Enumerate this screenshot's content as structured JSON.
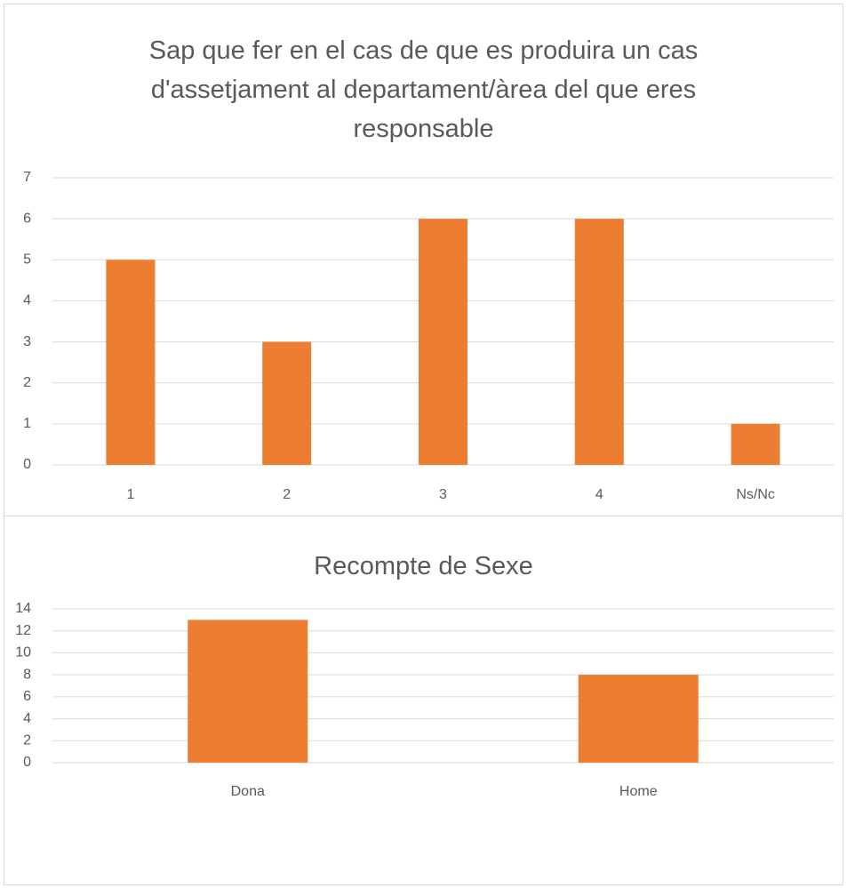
{
  "chart_data": [
    {
      "type": "bar",
      "title": "Sap que fer en el cas de que es produira un cas d'assetjament al departament/àrea del que eres responsable",
      "categories": [
        "1",
        "2",
        "3",
        "4",
        "Ns/Nc"
      ],
      "values": [
        5,
        3,
        6,
        6,
        1
      ],
      "color": "#ed7d31",
      "ylim": [
        0,
        7
      ],
      "yticks": [
        0,
        1,
        2,
        3,
        4,
        5,
        6,
        7
      ],
      "grid": true
    },
    {
      "type": "bar",
      "title": "Recompte de Sexe",
      "categories": [
        "Dona",
        "Home"
      ],
      "values": [
        13,
        8
      ],
      "color": "#ed7d31",
      "ylim": [
        0,
        14
      ],
      "yticks": [
        0,
        2,
        4,
        6,
        8,
        10,
        12,
        14
      ],
      "grid": true
    }
  ]
}
